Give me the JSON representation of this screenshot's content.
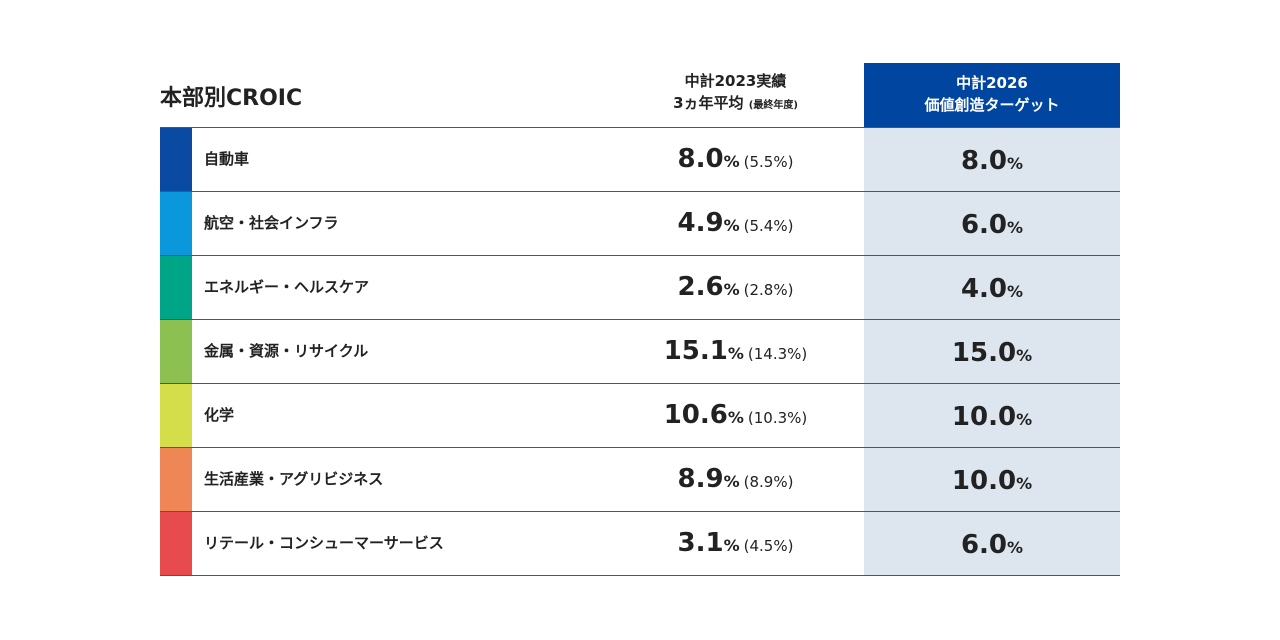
{
  "header": {
    "title": "本部別CROIC",
    "col_actual": [
      "中計2023実績",
      "3ヵ年平均",
      "(最終年度)"
    ],
    "col_target": [
      "中計2026",
      "価値創造ターゲット"
    ]
  },
  "table": {
    "unit": "%",
    "rows": [
      {
        "name": "自動車",
        "color": "#0b4aa2",
        "actual": "8.0",
        "final": "(5.5%)",
        "target": "8.0"
      },
      {
        "name": "航空・社会インフラ",
        "color": "#0a97dc",
        "actual": "4.9",
        "final": "(5.4%)",
        "target": "6.0"
      },
      {
        "name": "エネルギー・ヘルスケア",
        "color": "#00a587",
        "actual": "2.6",
        "final": "(2.8%)",
        "target": "4.0"
      },
      {
        "name": "金属・資源・リサイクル",
        "color": "#8cc152",
        "actual": "15.1",
        "final": "(14.3%)",
        "target": "15.0"
      },
      {
        "name": "化学",
        "color": "#d4de4a",
        "actual": "10.6",
        "final": "(10.3%)",
        "target": "10.0"
      },
      {
        "name": "生活産業・アグリビジネス",
        "color": "#ee8755",
        "actual": "8.9",
        "final": "(8.9%)",
        "target": "10.0"
      },
      {
        "name": "リテール・コンシューマーサービス",
        "color": "#e84b4e",
        "actual": "3.1",
        "final": "(4.5%)",
        "target": "6.0"
      }
    ]
  }
}
